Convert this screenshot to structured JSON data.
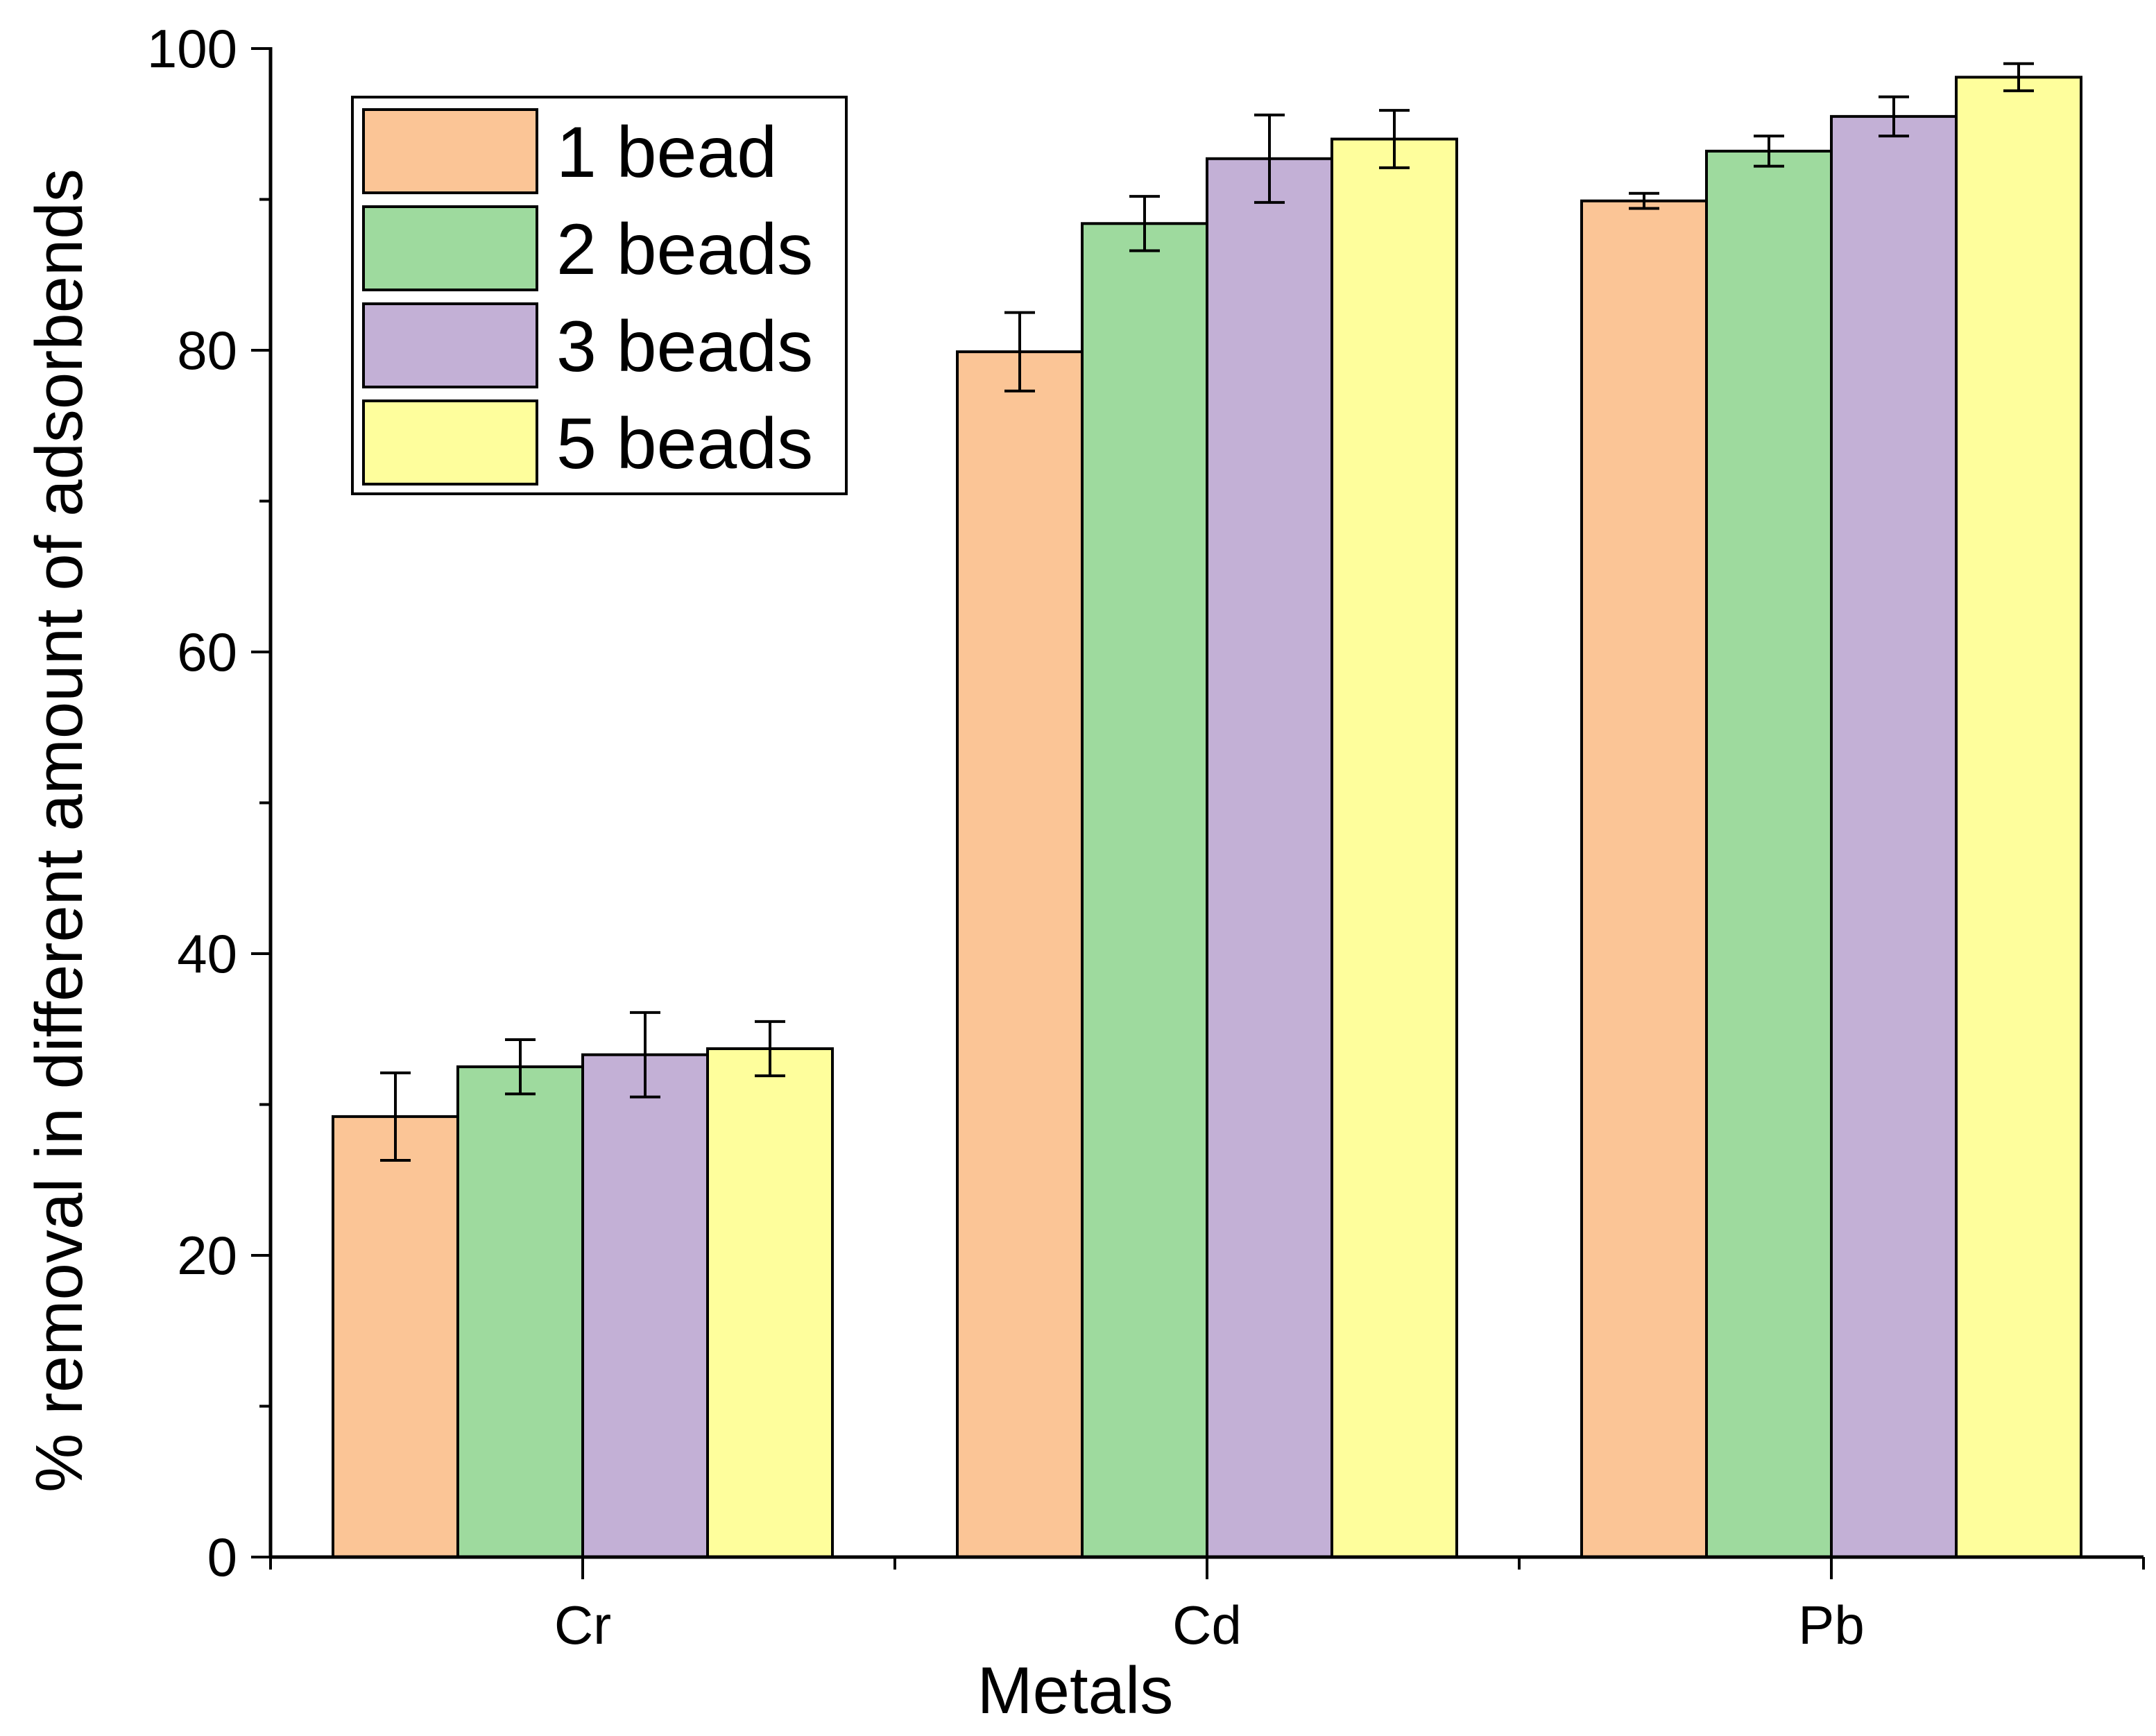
{
  "chart_data": {
    "type": "bar",
    "title": "",
    "xlabel": "Metals",
    "ylabel": "% removal in different amount of adsorbends",
    "categories": [
      "Cr",
      "Cd",
      "Pb"
    ],
    "ylim": [
      0,
      100
    ],
    "yticks": [
      0,
      20,
      40,
      60,
      80,
      100
    ],
    "yticks_text": [
      "0",
      "20",
      "40",
      "60",
      "80",
      "100"
    ],
    "grid": false,
    "legend_position": "top-left",
    "series": [
      {
        "name": "1 bead",
        "color": "#FBC596",
        "values": [
          29.2,
          79.9,
          89.9
        ],
        "errors": [
          2.9,
          2.6,
          0.5
        ]
      },
      {
        "name": "2 beads",
        "color": "#9EDA9E",
        "values": [
          32.5,
          88.4,
          93.2
        ],
        "errors": [
          1.8,
          1.8,
          1.0
        ]
      },
      {
        "name": "3 beads",
        "color": "#C3B0D6",
        "values": [
          33.3,
          92.7,
          95.5
        ],
        "errors": [
          2.8,
          2.9,
          1.3
        ]
      },
      {
        "name": "5 beads",
        "color": "#FEFE9C",
        "values": [
          33.7,
          94.0,
          98.1
        ],
        "errors": [
          1.8,
          1.9,
          0.9
        ]
      }
    ]
  }
}
